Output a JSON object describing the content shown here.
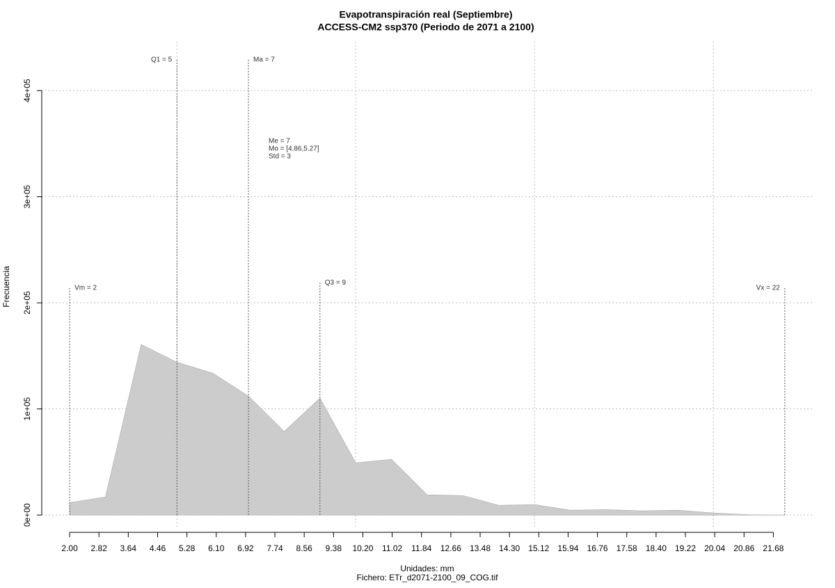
{
  "chart_data": {
    "type": "area",
    "title": "Evapotranspiración real (Septiembre)",
    "subtitle": "ACCESS-CM2 ssp370 (Periodo de 2071 a 2100)",
    "x_label": "Unidades: mm",
    "caption": "Fichero: ETr_d2071-2100_09_COG.tif",
    "y_label": "Frecuencia",
    "x": [
      2.0,
      3.0,
      4.0,
      5.0,
      6.0,
      7.0,
      8.0,
      9.0,
      10.0,
      11.0,
      12.0,
      13.0,
      14.0,
      15.0,
      16.0,
      17.0,
      18.0,
      19.0,
      20.0,
      21.0,
      22.0
    ],
    "values": [
      11800,
      17000,
      160700,
      144000,
      133800,
      112100,
      78700,
      110200,
      49200,
      52500,
      19000,
      18400,
      9200,
      9800,
      4600,
      5200,
      3900,
      4600,
      2000,
      300,
      0
    ],
    "color": "#cccccc",
    "xlim": [
      1.22,
      22.82
    ],
    "ylim": [
      -13000,
      446000
    ],
    "xticks": [
      {
        "value": 2.0,
        "label": "2.00"
      },
      {
        "value": 2.82,
        "label": "2.82"
      },
      {
        "value": 3.64,
        "label": "3.64"
      },
      {
        "value": 4.46,
        "label": "4.46"
      },
      {
        "value": 5.28,
        "label": "5.28"
      },
      {
        "value": 6.1,
        "label": "6.10"
      },
      {
        "value": 6.92,
        "label": "6.92"
      },
      {
        "value": 7.74,
        "label": "7.74"
      },
      {
        "value": 8.56,
        "label": "8.56"
      },
      {
        "value": 9.38,
        "label": "9.38"
      },
      {
        "value": 10.2,
        "label": "10.20"
      },
      {
        "value": 11.02,
        "label": "11.02"
      },
      {
        "value": 11.84,
        "label": "11.84"
      },
      {
        "value": 12.66,
        "label": "12.66"
      },
      {
        "value": 13.48,
        "label": "13.48"
      },
      {
        "value": 14.3,
        "label": "14.30"
      },
      {
        "value": 15.12,
        "label": "15.12"
      },
      {
        "value": 15.94,
        "label": "15.94"
      },
      {
        "value": 16.76,
        "label": "16.76"
      },
      {
        "value": 17.58,
        "label": "17.58"
      },
      {
        "value": 18.4,
        "label": "18.40"
      },
      {
        "value": 19.22,
        "label": "19.22"
      },
      {
        "value": 20.04,
        "label": "20.04"
      },
      {
        "value": 20.86,
        "label": "20.86"
      },
      {
        "value": 21.68,
        "label": "21.68"
      }
    ],
    "yticks": [
      {
        "value": 0,
        "label": "0e+00"
      },
      {
        "value": 100000,
        "label": "1e+05"
      },
      {
        "value": 200000,
        "label": "2e+05"
      },
      {
        "value": 300000,
        "label": "3e+05"
      },
      {
        "value": 400000,
        "label": "4e+05"
      }
    ],
    "xgrid": [
      5,
      10,
      15,
      20
    ],
    "grid": true,
    "markers": [
      {
        "label": "Vm = 2",
        "x": 2,
        "y": 214000
      },
      {
        "label": "Q1 = 5",
        "x": 5,
        "y": 429000
      },
      {
        "label": "Ma = 7",
        "x": 7,
        "y": 429000
      },
      {
        "label": "Q3 = 9",
        "x": 9,
        "y": 219000
      },
      {
        "label": "Vx = 22",
        "x": 22,
        "y": 214000
      }
    ],
    "stats": [
      "Me = 7",
      "Mo = [4.86,5.27]",
      "Std = 3"
    ]
  }
}
